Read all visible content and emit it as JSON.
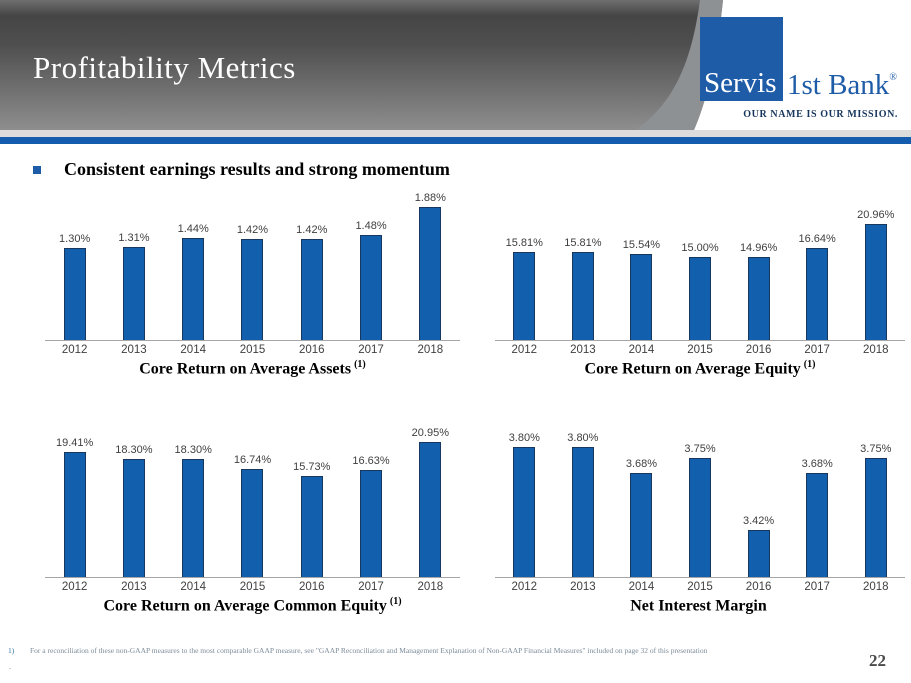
{
  "slide": {
    "title": "Profitability Metrics",
    "bullet_text": "Consistent earnings results and strong momentum",
    "page_number": "22"
  },
  "logo": {
    "name_left": "Servis",
    "name_right": "1st Bank",
    "registered_mark": "®",
    "tagline": "OUR NAME IS OUR MISSION."
  },
  "footnote": {
    "marker": "1)",
    "text": "For a reconciliation of these non-GAAP measures to the most comparable GAAP measure, see \"GAAP Reconciliation and Management Explanation of Non-GAAP Financial Measures\" included on page 32 of this presentation",
    "line2": "."
  },
  "colors": {
    "bar_fill": "#115FAD",
    "bar_border": "#17375E",
    "logo_blue": "#1F5CA8",
    "tagline_navy": "#17365D",
    "stripe_blue": "#145DAE",
    "axis_gray": "#A6A6A6",
    "label_gray": "#3F3F3F",
    "footnote_gray": "#7C8C9A",
    "footnote_marker": "#3779A4"
  },
  "chart_data": [
    {
      "type": "bar",
      "title": "Core Return on Average Assets",
      "title_superscript": "(1)",
      "categories": [
        "2012",
        "2013",
        "2014",
        "2015",
        "2016",
        "2017",
        "2018"
      ],
      "values": [
        1.3,
        1.31,
        1.44,
        1.42,
        1.42,
        1.48,
        1.88
      ],
      "labels": [
        "1.30%",
        "1.31%",
        "1.44%",
        "1.42%",
        "1.42%",
        "1.48%",
        "1.88%"
      ],
      "xlabel": "",
      "ylabel": "",
      "ylim": [
        0,
        2.0
      ],
      "grid": false,
      "legend": "none"
    },
    {
      "type": "bar",
      "title": "Core Return on Average Equity",
      "title_superscript": "(1)",
      "categories": [
        "2012",
        "2013",
        "2014",
        "2015",
        "2016",
        "2017",
        "2018"
      ],
      "values": [
        15.81,
        15.81,
        15.54,
        15.0,
        14.96,
        16.64,
        20.96
      ],
      "labels": [
        "15.81%",
        "15.81%",
        "15.54%",
        "15.00%",
        "14.96%",
        "16.64%",
        "20.96%"
      ],
      "xlabel": "",
      "ylabel": "",
      "ylim": [
        0,
        22
      ],
      "grid": false,
      "legend": "none"
    },
    {
      "type": "bar",
      "title": "Core Return on Average Common Equity",
      "title_superscript": "(1)",
      "categories": [
        "2012",
        "2013",
        "2014",
        "2015",
        "2016",
        "2017",
        "2018"
      ],
      "values": [
        19.41,
        18.3,
        18.3,
        16.74,
        15.73,
        16.63,
        20.95
      ],
      "labels": [
        "19.41%",
        "18.30%",
        "18.30%",
        "16.74%",
        "15.73%",
        "16.63%",
        "20.95%"
      ],
      "xlabel": "",
      "ylabel": "",
      "ylim": [
        0,
        22
      ],
      "grid": false,
      "legend": "none"
    },
    {
      "type": "bar",
      "title": "Net Interest Margin",
      "title_superscript": "",
      "categories": [
        "2012",
        "2013",
        "2014",
        "2015",
        "2016",
        "2017",
        "2018"
      ],
      "values": [
        3.8,
        3.8,
        3.68,
        3.75,
        3.42,
        3.68,
        3.75
      ],
      "labels": [
        "3.80%",
        "3.80%",
        "3.68%",
        "3.75%",
        "3.42%",
        "3.68%",
        "3.75%"
      ],
      "xlabel": "",
      "ylabel": "",
      "ylim": [
        3.2,
        3.85
      ],
      "grid": false,
      "legend": "none"
    }
  ]
}
